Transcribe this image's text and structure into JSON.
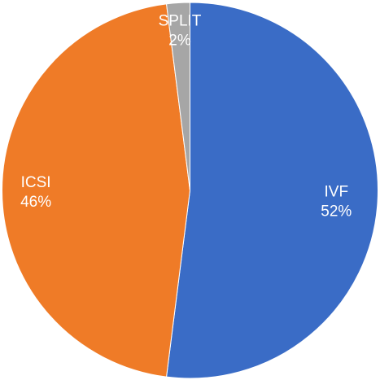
{
  "chart_data": {
    "type": "pie",
    "title": "",
    "slices": [
      {
        "label": "IVF",
        "value": 52,
        "display": "52%",
        "color": "#3a6cc6"
      },
      {
        "label": "ICSI",
        "value": 46,
        "display": "46%",
        "color": "#ef7b27"
      },
      {
        "label": "SPLIT",
        "value": 2,
        "display": "2%",
        "color": "#a6a6a6"
      }
    ],
    "legend": "none",
    "labels_on_slices": true
  }
}
